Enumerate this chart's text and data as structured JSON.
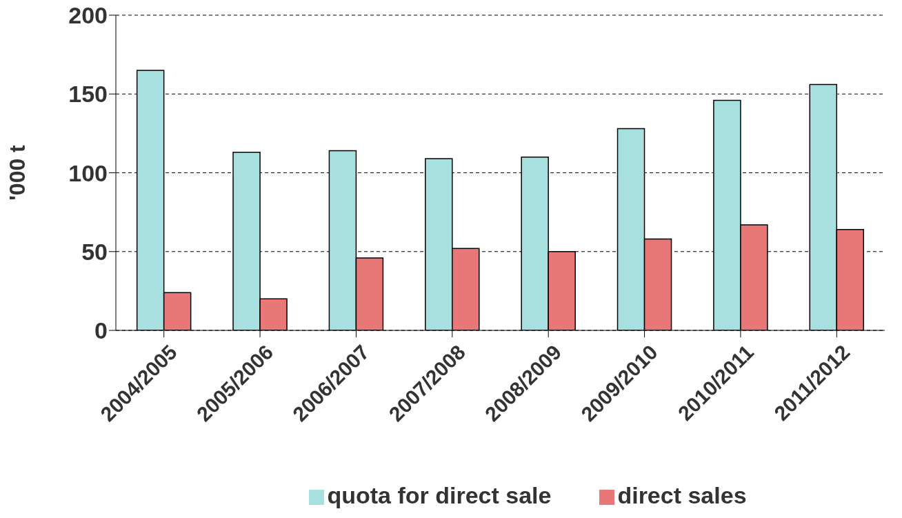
{
  "chart_data": {
    "type": "bar",
    "ylabel": "'000 t",
    "categories": [
      "2004/2005",
      "2005/2006",
      "2006/2007",
      "2007/2008",
      "2008/2009",
      "2009/2010",
      "2010/2011",
      "2011/2012"
    ],
    "series": [
      {
        "name": "quota for direct sale",
        "color": "#a8e0e0",
        "values": [
          165,
          113,
          114,
          109,
          110,
          128,
          146,
          156
        ]
      },
      {
        "name": "direct sales",
        "color": "#e87878",
        "values": [
          24,
          20,
          46,
          52,
          50,
          58,
          67,
          64
        ]
      }
    ],
    "ylim": [
      0,
      200
    ],
    "yticks": [
      0,
      50,
      100,
      150,
      200
    ],
    "grid": "y",
    "legend": "bottom"
  }
}
